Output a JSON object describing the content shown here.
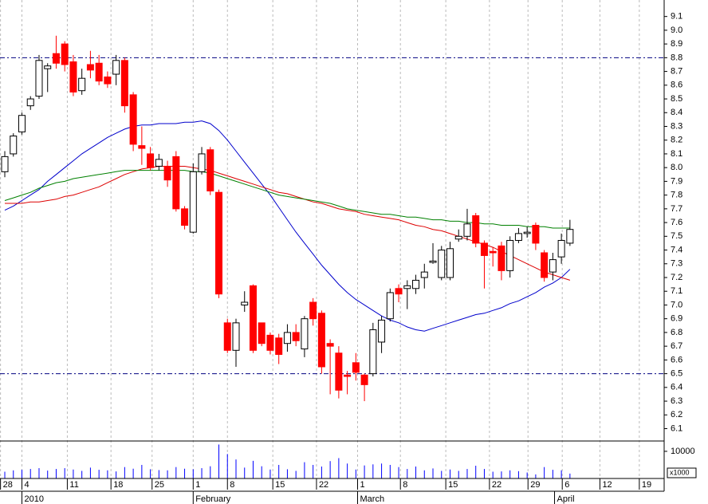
{
  "chart_data": [
    {
      "type": "candlestick",
      "open": [
        7.97,
        8.1,
        8.26,
        8.45,
        8.52,
        8.72,
        8.83,
        8.9,
        8.77,
        8.56,
        8.75,
        8.76,
        8.66,
        8.68,
        8.78,
        8.53,
        8.16,
        8.1,
        8.01,
        8.01,
        8.08,
        7.7,
        7.53,
        7.97,
        8.13,
        7.82,
        6.87,
        6.67,
        7.0,
        7.14,
        6.87,
        6.78,
        6.76,
        6.72,
        6.8,
        6.68,
        7.02,
        6.94,
        6.72,
        6.65,
        6.49,
        6.58,
        6.49,
        6.5,
        6.73,
        6.9,
        7.12,
        7.12,
        7.12,
        7.2,
        7.31,
        7.2,
        7.2,
        7.48,
        7.5,
        7.65,
        7.45,
        7.39,
        7.43,
        7.25,
        7.47,
        7.52,
        7.58,
        7.38,
        7.24,
        7.35,
        7.45
      ],
      "high": [
        8.12,
        8.25,
        8.4,
        8.52,
        8.82,
        8.76,
        8.96,
        8.92,
        8.82,
        8.72,
        8.85,
        8.82,
        8.7,
        8.82,
        8.8,
        8.55,
        8.3,
        8.15,
        8.1,
        8.05,
        8.12,
        7.72,
        8.03,
        8.15,
        8.15,
        7.84,
        6.9,
        6.9,
        7.1,
        7.15,
        6.87,
        6.8,
        6.79,
        6.86,
        6.86,
        6.92,
        7.05,
        6.96,
        6.75,
        6.7,
        6.52,
        6.65,
        6.5,
        6.87,
        6.92,
        7.12,
        7.15,
        7.18,
        7.22,
        7.3,
        7.45,
        7.43,
        7.46,
        7.55,
        7.7,
        7.67,
        7.47,
        7.42,
        7.46,
        7.5,
        7.56,
        7.57,
        7.6,
        7.4,
        7.38,
        7.52,
        7.62
      ],
      "low": [
        7.93,
        8.08,
        8.24,
        8.42,
        8.5,
        8.55,
        8.72,
        8.7,
        8.52,
        8.53,
        8.65,
        8.6,
        8.58,
        8.6,
        8.4,
        8.12,
        8.02,
        7.98,
        7.98,
        7.86,
        7.68,
        7.55,
        7.52,
        7.95,
        7.8,
        7.05,
        6.65,
        6.55,
        6.95,
        6.65,
        6.7,
        6.64,
        6.57,
        6.66,
        6.7,
        6.62,
        6.85,
        6.5,
        6.35,
        6.32,
        6.35,
        6.45,
        6.3,
        6.48,
        6.65,
        6.88,
        7.02,
        6.97,
        7.08,
        7.12,
        7.3,
        7.18,
        7.18,
        7.46,
        7.47,
        7.42,
        7.12,
        7.28,
        7.18,
        7.2,
        7.45,
        7.49,
        7.4,
        7.17,
        7.18,
        7.3,
        7.43
      ],
      "close": [
        8.08,
        8.23,
        8.38,
        8.5,
        8.78,
        8.74,
        8.76,
        8.75,
        8.55,
        8.65,
        8.71,
        8.63,
        8.61,
        8.78,
        8.45,
        8.17,
        8.14,
        8.0,
        8.06,
        7.91,
        7.7,
        7.58,
        7.97,
        8.1,
        7.83,
        7.08,
        6.67,
        6.87,
        7.02,
        6.67,
        6.72,
        6.67,
        6.64,
        6.8,
        6.74,
        6.9,
        6.9,
        6.55,
        6.7,
        6.38,
        6.48,
        6.51,
        6.42,
        6.82,
        6.89,
        7.09,
        7.08,
        7.14,
        7.18,
        7.24,
        7.32,
        7.4,
        7.41,
        7.5,
        7.59,
        7.45,
        7.36,
        7.38,
        7.25,
        7.47,
        7.52,
        7.53,
        7.45,
        7.2,
        7.33,
        7.47,
        7.55
      ],
      "up_color": "#ffffff",
      "down_color": "#ff0000",
      "series": [
        {
          "color": "#0000cc",
          "values": [
            7.69,
            7.72,
            7.76,
            7.8,
            7.84,
            7.9,
            7.95,
            8.0,
            8.05,
            8.1,
            8.14,
            8.18,
            8.22,
            8.25,
            8.28,
            8.3,
            8.31,
            8.31,
            8.32,
            8.32,
            8.32,
            8.33,
            8.33,
            8.34,
            8.32,
            8.27,
            8.2,
            8.12,
            8.04,
            7.96,
            7.88,
            7.8,
            7.71,
            7.62,
            7.53,
            7.45,
            7.37,
            7.29,
            7.22,
            7.15,
            7.09,
            7.04,
            7.0,
            6.96,
            6.92,
            6.89,
            6.87,
            6.84,
            6.82,
            6.81,
            6.83,
            6.85,
            6.87,
            6.89,
            6.91,
            6.93,
            6.94,
            6.96,
            6.98,
            7.01,
            7.03,
            7.06,
            7.09,
            7.13,
            7.16,
            7.2,
            7.26
          ]
        },
        {
          "color": "#dd0000",
          "values": [
            7.74,
            7.74,
            7.74,
            7.75,
            7.75,
            7.76,
            7.77,
            7.79,
            7.8,
            7.82,
            7.84,
            7.86,
            7.89,
            7.92,
            7.95,
            7.97,
            7.99,
            8.0,
            8.01,
            8.01,
            8.01,
            8.01,
            8.0,
            7.99,
            7.98,
            7.96,
            7.94,
            7.92,
            7.9,
            7.88,
            7.86,
            7.84,
            7.82,
            7.81,
            7.79,
            7.77,
            7.75,
            7.74,
            7.72,
            7.7,
            7.69,
            7.68,
            7.66,
            7.65,
            7.64,
            7.63,
            7.62,
            7.6,
            7.58,
            7.57,
            7.55,
            7.54,
            7.52,
            7.5,
            7.48,
            7.46,
            7.44,
            7.42,
            7.39,
            7.36,
            7.33,
            7.3,
            7.27,
            7.24,
            7.22,
            7.2,
            7.18
          ]
        },
        {
          "color": "#008000",
          "values": [
            7.76,
            7.78,
            7.8,
            7.82,
            7.85,
            7.87,
            7.89,
            7.9,
            7.92,
            7.93,
            7.94,
            7.95,
            7.96,
            7.97,
            7.98,
            7.98,
            7.98,
            7.98,
            7.98,
            7.98,
            7.98,
            7.98,
            7.97,
            7.97,
            7.96,
            7.94,
            7.92,
            7.9,
            7.88,
            7.86,
            7.84,
            7.82,
            7.8,
            7.79,
            7.78,
            7.77,
            7.76,
            7.75,
            7.74,
            7.72,
            7.7,
            7.69,
            7.68,
            7.67,
            7.66,
            7.66,
            7.65,
            7.64,
            7.64,
            7.63,
            7.62,
            7.62,
            7.61,
            7.61,
            7.6,
            7.6,
            7.59,
            7.59,
            7.58,
            7.58,
            7.58,
            7.57,
            7.57,
            7.57,
            7.56,
            7.56,
            7.56
          ]
        }
      ],
      "ylim": [
        6.01,
        9.22
      ],
      "yticks": [
        6.1,
        6.2,
        6.3,
        6.4,
        6.5,
        6.6,
        6.7,
        6.8,
        6.9,
        {
          "value": 7,
          "label": "7.0"
        },
        7.1,
        7.2,
        7.3,
        7.4,
        7.5,
        7.6,
        7.7,
        7.8,
        7.9,
        {
          "value": 8,
          "label": "8.0"
        },
        8.1,
        8.2,
        8.3,
        8.4,
        8.5,
        8.6,
        8.7,
        8.8,
        8.9,
        {
          "value": 9,
          "label": "9.0"
        },
        9.1
      ],
      "hlines": [
        8.8,
        6.5
      ],
      "xlim": [
        -0.56,
        77.0
      ],
      "xticks": [
        {
          "value": -0.5,
          "label": "28"
        },
        {
          "value": 2.0,
          "label": "4"
        },
        {
          "value": 7.3,
          "label": "11"
        },
        {
          "value": 12.4,
          "label": "18"
        },
        {
          "value": 17.2,
          "label": "25"
        },
        {
          "value": 22.0,
          "label": "1"
        },
        {
          "value": 26.0,
          "label": "8"
        },
        {
          "value": 31.3,
          "label": "15"
        },
        {
          "value": 36.4,
          "label": "22"
        },
        {
          "value": 41.2,
          "label": "1"
        },
        {
          "value": 46.2,
          "label": "8"
        },
        {
          "value": 51.5,
          "label": "15"
        },
        {
          "value": 56.6,
          "label": "22"
        },
        {
          "value": 61.1,
          "label": "29"
        },
        {
          "value": 65.1,
          "label": "6"
        },
        {
          "value": 69.5,
          "label": "12"
        },
        {
          "value": 74.1,
          "label": "19"
        }
      ],
      "month_ticks": [
        {
          "value": 2.0,
          "label": "2010"
        },
        {
          "value": 22.0,
          "label": "February"
        },
        {
          "value": 41.2,
          "label": "March"
        },
        {
          "value": 64.2,
          "label": "April"
        }
      ]
    },
    {
      "type": "bar",
      "values": [
        2500,
        3000,
        3200,
        3500,
        3800,
        2900,
        3500,
        3800,
        3300,
        2800,
        4000,
        3200,
        3000,
        2600,
        4200,
        3600,
        5000,
        3400,
        3100,
        3000,
        4200,
        3600,
        3400,
        3800,
        4500,
        12500,
        9000,
        7000,
        4000,
        6500,
        4500,
        3300,
        5000,
        3400,
        2800,
        6000,
        5000,
        4400,
        6400,
        7500,
        5500,
        3300,
        4800,
        5200,
        5500,
        5000,
        4200,
        3500,
        4400,
        3000,
        3700,
        2800,
        3300,
        2800,
        3500,
        4700,
        3500,
        2500,
        2600,
        3000,
        2700,
        2200,
        1500,
        4200,
        3200,
        3000,
        1800
      ],
      "color": "#0000ff",
      "ylim": [
        0,
        13800
      ],
      "yticks": [
        10000
      ],
      "unit_label": "x1000"
    }
  ]
}
